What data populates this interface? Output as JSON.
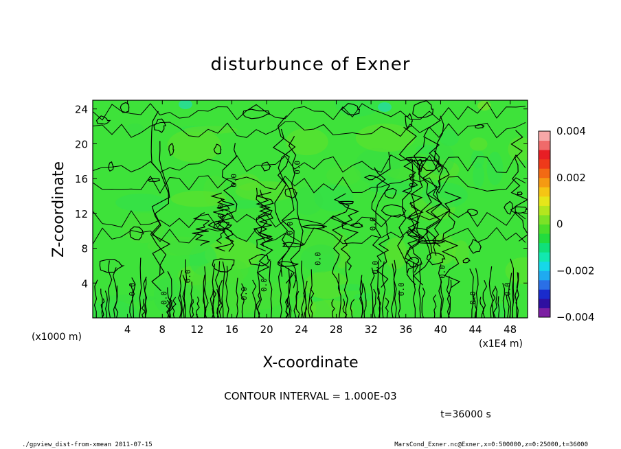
{
  "chart_data": {
    "type": "heatmap",
    "title": "disturbunce of Exner",
    "xlabel": "X-coordinate",
    "ylabel": "Z-coordinate",
    "x_unit": "(x1E4 m)",
    "y_unit": "(x1000 m)",
    "x_ticks": [
      "4",
      "8",
      "12",
      "16",
      "20",
      "24",
      "28",
      "32",
      "36",
      "40",
      "44",
      "48"
    ],
    "y_ticks": [
      "4",
      "8",
      "12",
      "16",
      "20",
      "24"
    ],
    "xlim": [
      0,
      50
    ],
    "ylim": [
      0,
      25
    ],
    "colorbar": {
      "min": -0.004,
      "max": 0.004,
      "tick_labels": [
        "0.004",
        "0.002",
        "0",
        "−0.002",
        "−0.004"
      ],
      "tick_values": [
        0.004,
        0.002,
        0,
        -0.002,
        -0.004
      ],
      "colors": [
        "#7b1fa2",
        "#2e0fa0",
        "#1a2bcc",
        "#2a6fe6",
        "#1faaf0",
        "#16d8e8",
        "#12e8b0",
        "#10e07a",
        "#22dc3e",
        "#4ade2a",
        "#7ce226",
        "#b4e61e",
        "#e6e61a",
        "#f5c514",
        "#f59a12",
        "#f26a14",
        "#ee3a1a",
        "#e81e24",
        "#f06a6a",
        "#f7a8a8"
      ]
    },
    "contour_levels": [
      -0.001,
      0,
      0.001
    ],
    "contour_label": "0.0",
    "contour_interval": "CONTOUR INTERVAL = 1.000E-03",
    "time_label": "t=36000 s",
    "field_color_dominant": "#3ee23a"
  },
  "footer": {
    "left": "./gpview_dist-from-xmean   2011-07-15",
    "right": "MarsCond_Exner.nc@Exner,x=0:500000,z=0:25000,t=36000"
  }
}
